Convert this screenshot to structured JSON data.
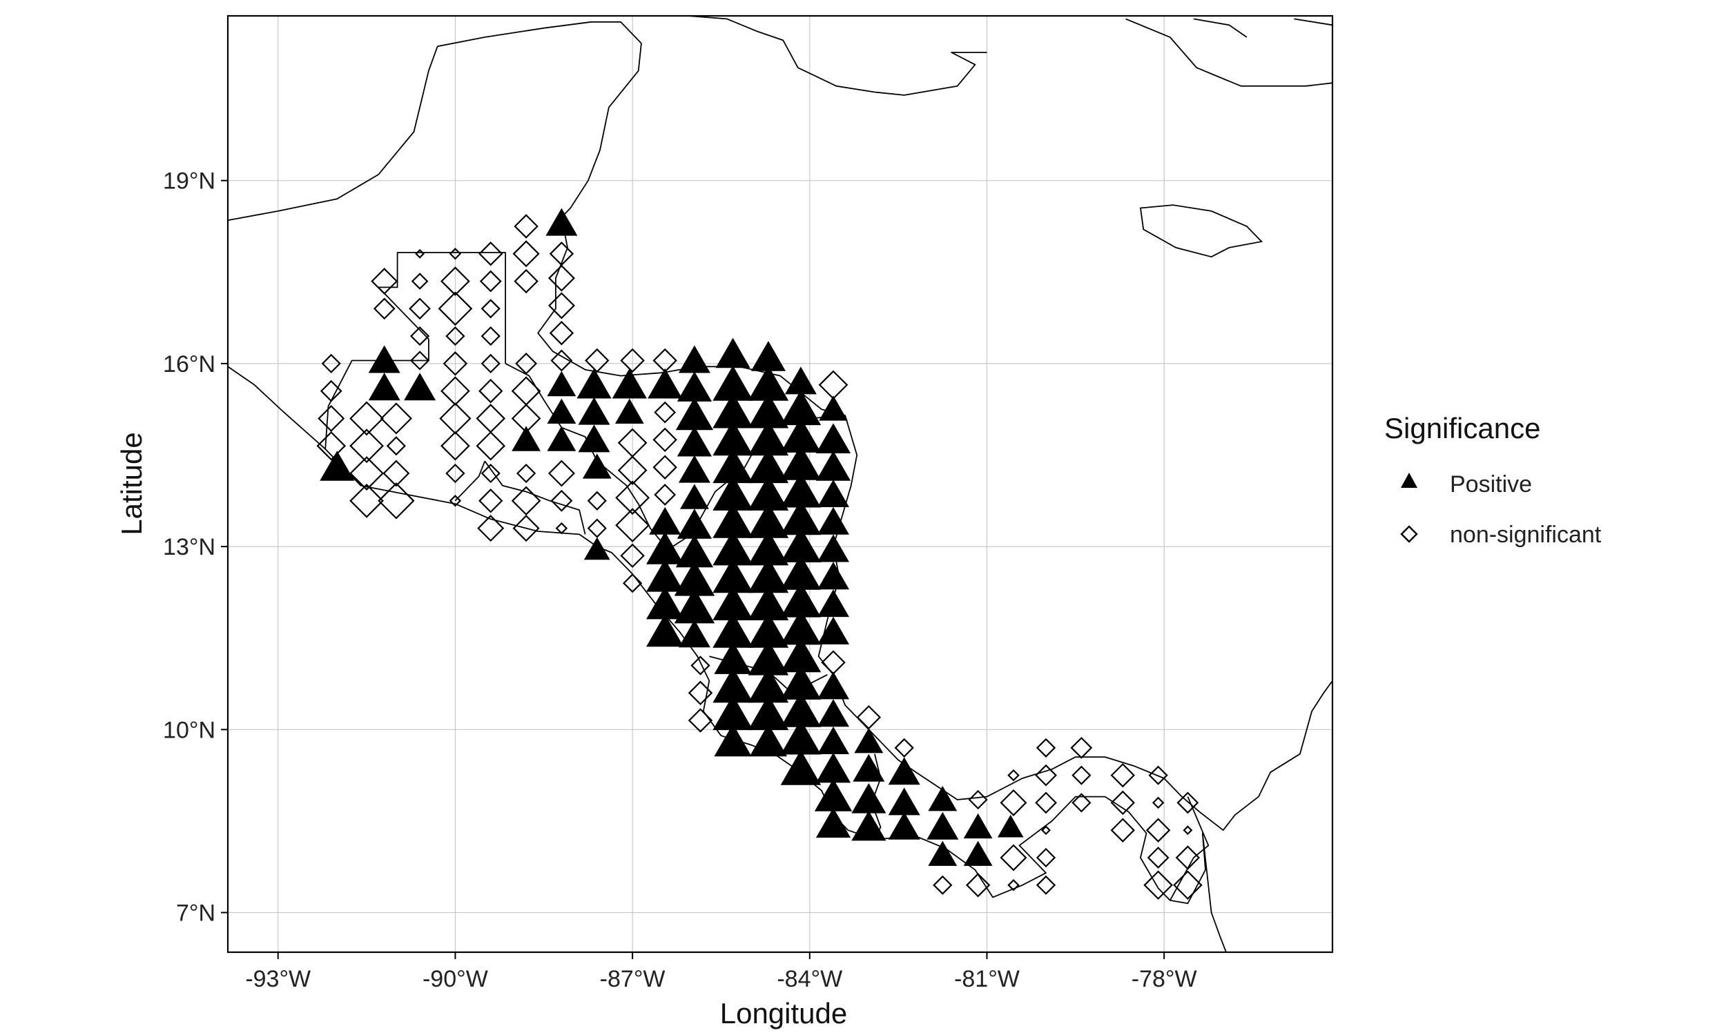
{
  "chart_data": {
    "type": "scatter",
    "map": true,
    "xlabel": "Longitude",
    "ylabel": "Latitude",
    "xlim": [
      -93.85,
      -75.15
    ],
    "ylim": [
      6.35,
      21.7
    ],
    "xticks": [
      -93,
      -90,
      -87,
      -84,
      -81,
      -78
    ],
    "xtick_labels": [
      "-93°W",
      "-90°W",
      "-87°W",
      "-84°W",
      "-81°W",
      "-78°W"
    ],
    "yticks": [
      7,
      10,
      13,
      16,
      19
    ],
    "ytick_labels": [
      "7°N",
      "10°N",
      "13°N",
      "16°N",
      "19°N"
    ],
    "grid": true,
    "legend": {
      "title": "Significance",
      "placement": "right",
      "entries": [
        {
          "label": "Positive",
          "marker": "triangle"
        },
        {
          "label": "non-significant",
          "marker": "diamond"
        }
      ]
    },
    "series": [
      {
        "name": "Positive",
        "marker": "triangle",
        "color": "#000000",
        "points": [
          [
            -88.2,
            18.3,
            0.55
          ],
          [
            -91.2,
            16.05,
            0.55
          ],
          [
            -91.2,
            15.6,
            0.55
          ],
          [
            -90.6,
            15.6,
            0.55
          ],
          [
            -92.0,
            14.3,
            0.6
          ],
          [
            -88.8,
            14.75,
            0.5
          ],
          [
            -88.2,
            15.65,
            0.5
          ],
          [
            -88.2,
            15.2,
            0.5
          ],
          [
            -88.2,
            14.75,
            0.5
          ],
          [
            -87.65,
            15.65,
            0.6
          ],
          [
            -87.65,
            15.2,
            0.55
          ],
          [
            -87.65,
            14.75,
            0.55
          ],
          [
            -87.6,
            14.3,
            0.5
          ],
          [
            -87.05,
            15.65,
            0.6
          ],
          [
            -87.05,
            15.2,
            0.5
          ],
          [
            -87.6,
            12.95,
            0.45
          ],
          [
            -86.45,
            15.65,
            0.6
          ],
          [
            -86.45,
            13.4,
            0.55
          ],
          [
            -86.45,
            12.95,
            0.65
          ],
          [
            -86.45,
            12.5,
            0.65
          ],
          [
            -86.45,
            12.05,
            0.65
          ],
          [
            -86.45,
            11.6,
            0.65
          ],
          [
            -85.95,
            16.05,
            0.55
          ],
          [
            -85.95,
            15.6,
            0.6
          ],
          [
            -85.95,
            15.15,
            0.65
          ],
          [
            -85.95,
            14.7,
            0.6
          ],
          [
            -85.95,
            14.25,
            0.55
          ],
          [
            -85.95,
            13.8,
            0.5
          ],
          [
            -85.95,
            13.35,
            0.6
          ],
          [
            -85.95,
            12.9,
            0.65
          ],
          [
            -85.95,
            12.45,
            0.7
          ],
          [
            -85.95,
            12.0,
            0.7
          ],
          [
            -85.95,
            11.55,
            0.55
          ],
          [
            -85.3,
            16.15,
            0.6
          ],
          [
            -85.3,
            15.65,
            0.7
          ],
          [
            -85.3,
            15.2,
            0.7
          ],
          [
            -85.3,
            14.75,
            0.7
          ],
          [
            -85.3,
            14.3,
            0.7
          ],
          [
            -85.3,
            13.85,
            0.7
          ],
          [
            -85.3,
            13.4,
            0.7
          ],
          [
            -85.3,
            12.95,
            0.7
          ],
          [
            -85.3,
            12.5,
            0.7
          ],
          [
            -85.3,
            12.05,
            0.7
          ],
          [
            -85.3,
            11.6,
            0.7
          ],
          [
            -85.3,
            11.15,
            0.65
          ],
          [
            -85.3,
            10.7,
            0.7
          ],
          [
            -85.3,
            10.25,
            0.7
          ],
          [
            -85.3,
            9.8,
            0.65
          ],
          [
            -84.7,
            16.1,
            0.6
          ],
          [
            -84.7,
            15.65,
            0.7
          ],
          [
            -84.7,
            15.2,
            0.7
          ],
          [
            -84.7,
            14.75,
            0.7
          ],
          [
            -84.7,
            14.3,
            0.7
          ],
          [
            -84.7,
            13.85,
            0.7
          ],
          [
            -84.7,
            13.4,
            0.7
          ],
          [
            -84.7,
            12.95,
            0.7
          ],
          [
            -84.7,
            12.5,
            0.7
          ],
          [
            -84.7,
            12.05,
            0.7
          ],
          [
            -84.7,
            11.6,
            0.7
          ],
          [
            -84.7,
            11.15,
            0.7
          ],
          [
            -84.7,
            10.7,
            0.7
          ],
          [
            -84.7,
            10.25,
            0.7
          ],
          [
            -84.7,
            9.8,
            0.65
          ],
          [
            -84.15,
            15.7,
            0.55
          ],
          [
            -84.15,
            15.25,
            0.7
          ],
          [
            -84.15,
            14.8,
            0.7
          ],
          [
            -84.15,
            14.35,
            0.7
          ],
          [
            -84.15,
            13.9,
            0.7
          ],
          [
            -84.15,
            13.45,
            0.7
          ],
          [
            -84.15,
            13.0,
            0.7
          ],
          [
            -84.15,
            12.55,
            0.7
          ],
          [
            -84.15,
            12.1,
            0.7
          ],
          [
            -84.15,
            11.65,
            0.7
          ],
          [
            -84.15,
            11.2,
            0.7
          ],
          [
            -84.15,
            10.75,
            0.7
          ],
          [
            -84.15,
            10.3,
            0.7
          ],
          [
            -84.15,
            9.85,
            0.7
          ],
          [
            -84.15,
            9.35,
            0.7
          ],
          [
            -83.6,
            15.25,
            0.5
          ],
          [
            -83.6,
            14.75,
            0.6
          ],
          [
            -83.6,
            14.3,
            0.6
          ],
          [
            -83.6,
            13.85,
            0.55
          ],
          [
            -83.6,
            13.4,
            0.55
          ],
          [
            -83.6,
            12.95,
            0.55
          ],
          [
            -83.6,
            12.5,
            0.55
          ],
          [
            -83.6,
            12.05,
            0.55
          ],
          [
            -83.6,
            11.6,
            0.55
          ],
          [
            -83.6,
            10.7,
            0.55
          ],
          [
            -83.6,
            10.25,
            0.55
          ],
          [
            -83.6,
            9.8,
            0.55
          ],
          [
            -83.6,
            9.35,
            0.6
          ],
          [
            -83.6,
            8.9,
            0.65
          ],
          [
            -83.6,
            8.45,
            0.6
          ],
          [
            -83.0,
            9.8,
            0.5
          ],
          [
            -83.0,
            9.35,
            0.55
          ],
          [
            -83.0,
            8.85,
            0.6
          ],
          [
            -83.0,
            8.4,
            0.6
          ],
          [
            -82.4,
            9.3,
            0.55
          ],
          [
            -82.4,
            8.8,
            0.55
          ],
          [
            -82.4,
            8.4,
            0.55
          ],
          [
            -81.75,
            8.85,
            0.5
          ],
          [
            -81.75,
            8.4,
            0.55
          ],
          [
            -81.75,
            7.95,
            0.5
          ],
          [
            -81.15,
            8.4,
            0.5
          ],
          [
            -81.15,
            7.95,
            0.5
          ],
          [
            -80.6,
            8.4,
            0.45
          ]
        ]
      },
      {
        "name": "non-significant",
        "marker": "diamond",
        "color": "#000000",
        "points": [
          [
            -88.8,
            18.25,
            0.45
          ],
          [
            -88.2,
            17.8,
            0.45
          ],
          [
            -88.8,
            17.8,
            0.5
          ],
          [
            -88.2,
            17.4,
            0.5
          ],
          [
            -88.8,
            17.35,
            0.45
          ],
          [
            -88.2,
            16.95,
            0.5
          ],
          [
            -88.2,
            16.5,
            0.45
          ],
          [
            -88.2,
            16.05,
            0.4
          ],
          [
            -88.8,
            16.0,
            0.4
          ],
          [
            -91.2,
            17.35,
            0.5
          ],
          [
            -91.2,
            16.9,
            0.4
          ],
          [
            -90.6,
            17.8,
            0.15
          ],
          [
            -90.6,
            17.35,
            0.3
          ],
          [
            -90.6,
            16.9,
            0.4
          ],
          [
            -90.6,
            16.45,
            0.35
          ],
          [
            -90.6,
            16.05,
            0.35
          ],
          [
            -90.0,
            17.8,
            0.2
          ],
          [
            -90.0,
            17.35,
            0.55
          ],
          [
            -90.0,
            16.9,
            0.65
          ],
          [
            -90.0,
            16.45,
            0.35
          ],
          [
            -90.0,
            16.0,
            0.45
          ],
          [
            -90.0,
            15.55,
            0.55
          ],
          [
            -90.0,
            15.1,
            0.6
          ],
          [
            -90.0,
            14.65,
            0.55
          ],
          [
            -90.0,
            14.2,
            0.35
          ],
          [
            -90.0,
            13.75,
            0.2
          ],
          [
            -89.4,
            17.8,
            0.45
          ],
          [
            -89.4,
            17.35,
            0.4
          ],
          [
            -89.4,
            16.9,
            0.35
          ],
          [
            -89.4,
            16.45,
            0.35
          ],
          [
            -89.4,
            16.0,
            0.35
          ],
          [
            -89.4,
            15.55,
            0.45
          ],
          [
            -89.4,
            15.1,
            0.55
          ],
          [
            -89.4,
            14.65,
            0.55
          ],
          [
            -89.4,
            14.2,
            0.35
          ],
          [
            -89.4,
            13.75,
            0.45
          ],
          [
            -89.4,
            13.3,
            0.5
          ],
          [
            -88.8,
            15.55,
            0.55
          ],
          [
            -88.8,
            15.1,
            0.55
          ],
          [
            -88.8,
            14.2,
            0.35
          ],
          [
            -88.8,
            13.75,
            0.55
          ],
          [
            -88.8,
            13.3,
            0.5
          ],
          [
            -88.2,
            14.2,
            0.5
          ],
          [
            -88.2,
            13.75,
            0.4
          ],
          [
            -88.2,
            13.3,
            0.2
          ],
          [
            -92.1,
            16.0,
            0.35
          ],
          [
            -92.1,
            15.55,
            0.4
          ],
          [
            -92.1,
            15.1,
            0.5
          ],
          [
            -92.1,
            14.65,
            0.55
          ],
          [
            -91.5,
            15.1,
            0.65
          ],
          [
            -91.5,
            14.65,
            0.65
          ],
          [
            -91.5,
            14.2,
            0.65
          ],
          [
            -91.5,
            13.75,
            0.65
          ],
          [
            -91.0,
            15.1,
            0.6
          ],
          [
            -91.0,
            14.65,
            0.35
          ],
          [
            -91.0,
            14.2,
            0.5
          ],
          [
            -91.0,
            13.75,
            0.7
          ],
          [
            -87.6,
            16.05,
            0.45
          ],
          [
            -87.0,
            16.05,
            0.45
          ],
          [
            -86.45,
            16.05,
            0.45
          ],
          [
            -87.0,
            14.7,
            0.55
          ],
          [
            -87.0,
            14.25,
            0.55
          ],
          [
            -87.0,
            13.8,
            0.65
          ],
          [
            -87.0,
            13.35,
            0.65
          ],
          [
            -87.0,
            12.85,
            0.45
          ],
          [
            -87.0,
            12.4,
            0.35
          ],
          [
            -87.6,
            13.75,
            0.35
          ],
          [
            -87.6,
            13.3,
            0.35
          ],
          [
            -86.45,
            15.2,
            0.4
          ],
          [
            -86.45,
            14.75,
            0.45
          ],
          [
            -86.45,
            14.3,
            0.45
          ],
          [
            -86.45,
            13.85,
            0.4
          ],
          [
            -85.85,
            11.05,
            0.35
          ],
          [
            -85.85,
            10.6,
            0.45
          ],
          [
            -85.85,
            10.15,
            0.45
          ],
          [
            -83.6,
            15.65,
            0.55
          ],
          [
            -83.6,
            11.1,
            0.45
          ],
          [
            -83.0,
            10.2,
            0.45
          ],
          [
            -82.4,
            9.7,
            0.35
          ],
          [
            -81.15,
            8.85,
            0.35
          ],
          [
            -81.15,
            7.45,
            0.45
          ],
          [
            -81.75,
            7.45,
            0.35
          ],
          [
            -80.55,
            9.25,
            0.2
          ],
          [
            -80.55,
            8.8,
            0.5
          ],
          [
            -80.55,
            7.9,
            0.5
          ],
          [
            -80.55,
            7.45,
            0.2
          ],
          [
            -80.0,
            9.7,
            0.35
          ],
          [
            -80.0,
            9.25,
            0.4
          ],
          [
            -80.0,
            8.8,
            0.4
          ],
          [
            -80.0,
            8.35,
            0.15
          ],
          [
            -80.0,
            7.9,
            0.35
          ],
          [
            -80.0,
            7.45,
            0.35
          ],
          [
            -79.4,
            9.7,
            0.4
          ],
          [
            -79.4,
            9.25,
            0.35
          ],
          [
            -79.4,
            8.8,
            0.35
          ],
          [
            -78.7,
            9.25,
            0.45
          ],
          [
            -78.7,
            8.8,
            0.45
          ],
          [
            -78.7,
            8.35,
            0.45
          ],
          [
            -78.1,
            9.25,
            0.35
          ],
          [
            -78.1,
            8.8,
            0.2
          ],
          [
            -78.1,
            8.35,
            0.45
          ],
          [
            -78.1,
            7.9,
            0.4
          ],
          [
            -78.1,
            7.45,
            0.55
          ],
          [
            -77.6,
            8.8,
            0.4
          ],
          [
            -77.6,
            8.35,
            0.15
          ],
          [
            -77.6,
            7.9,
            0.45
          ],
          [
            -77.6,
            7.45,
            0.55
          ]
        ]
      }
    ]
  }
}
